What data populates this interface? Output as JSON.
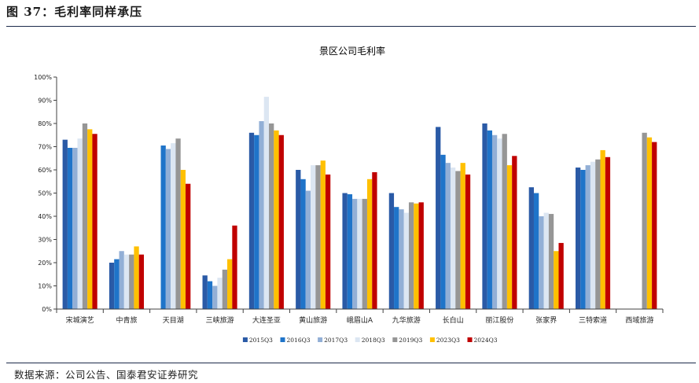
{
  "figure": {
    "title": "图 37：毛利率同样承压",
    "source": "数据来源：公司公告、国泰君安证券研究"
  },
  "chart_data": {
    "type": "bar",
    "title": "景区公司毛利率",
    "xlabel": "",
    "ylabel": "",
    "ylim": [
      0,
      100
    ],
    "y_ticks": [
      "0%",
      "10%",
      "20%",
      "30%",
      "40%",
      "50%",
      "60%",
      "70%",
      "80%",
      "90%",
      "100%"
    ],
    "grid": false,
    "legend_position": "bottom",
    "categories": [
      "宋城演艺",
      "中青旅",
      "天目湖",
      "三峡旅游",
      "大连圣亚",
      "黄山旅游",
      "峨眉山A",
      "九华旅游",
      "长白山",
      "丽江股份",
      "张家界",
      "三特索道",
      "西域旅游"
    ],
    "series": [
      {
        "name": "2015Q3",
        "color": "#2a5aa6",
        "values": [
          73,
          20,
          0,
          14.5,
          76,
          60,
          50,
          50,
          78.5,
          80,
          52.5,
          61,
          null
        ]
      },
      {
        "name": "2016Q3",
        "color": "#1f74c9",
        "values": [
          69.5,
          21.5,
          70.5,
          12,
          75,
          56,
          49.5,
          44,
          66.5,
          77,
          50,
          60,
          null
        ]
      },
      {
        "name": "2017Q3",
        "color": "#92afd6",
        "values": [
          69.5,
          25,
          69,
          10,
          81,
          51,
          47.5,
          43,
          63,
          75,
          40,
          62,
          null
        ]
      },
      {
        "name": "2018Q3",
        "color": "#dce6f2",
        "values": [
          73.5,
          23.5,
          71.5,
          13.5,
          91.5,
          62,
          47.5,
          41.5,
          61,
          73.5,
          41.5,
          63.5,
          null
        ]
      },
      {
        "name": "2019Q3",
        "color": "#969696",
        "values": [
          80,
          23.5,
          73.5,
          17,
          80,
          62,
          47.5,
          46,
          59.5,
          75.5,
          41,
          64.5,
          76
        ]
      },
      {
        "name": "2023Q3",
        "color": "#ffc000",
        "values": [
          77.5,
          27,
          60,
          21.5,
          77,
          64,
          56,
          45.5,
          63,
          62,
          25,
          68.5,
          74
        ]
      },
      {
        "name": "2024Q3",
        "color": "#c00000",
        "values": [
          75.5,
          23.5,
          54,
          36,
          75,
          58,
          59,
          46,
          58,
          66,
          28.5,
          65.5,
          72
        ]
      }
    ]
  }
}
